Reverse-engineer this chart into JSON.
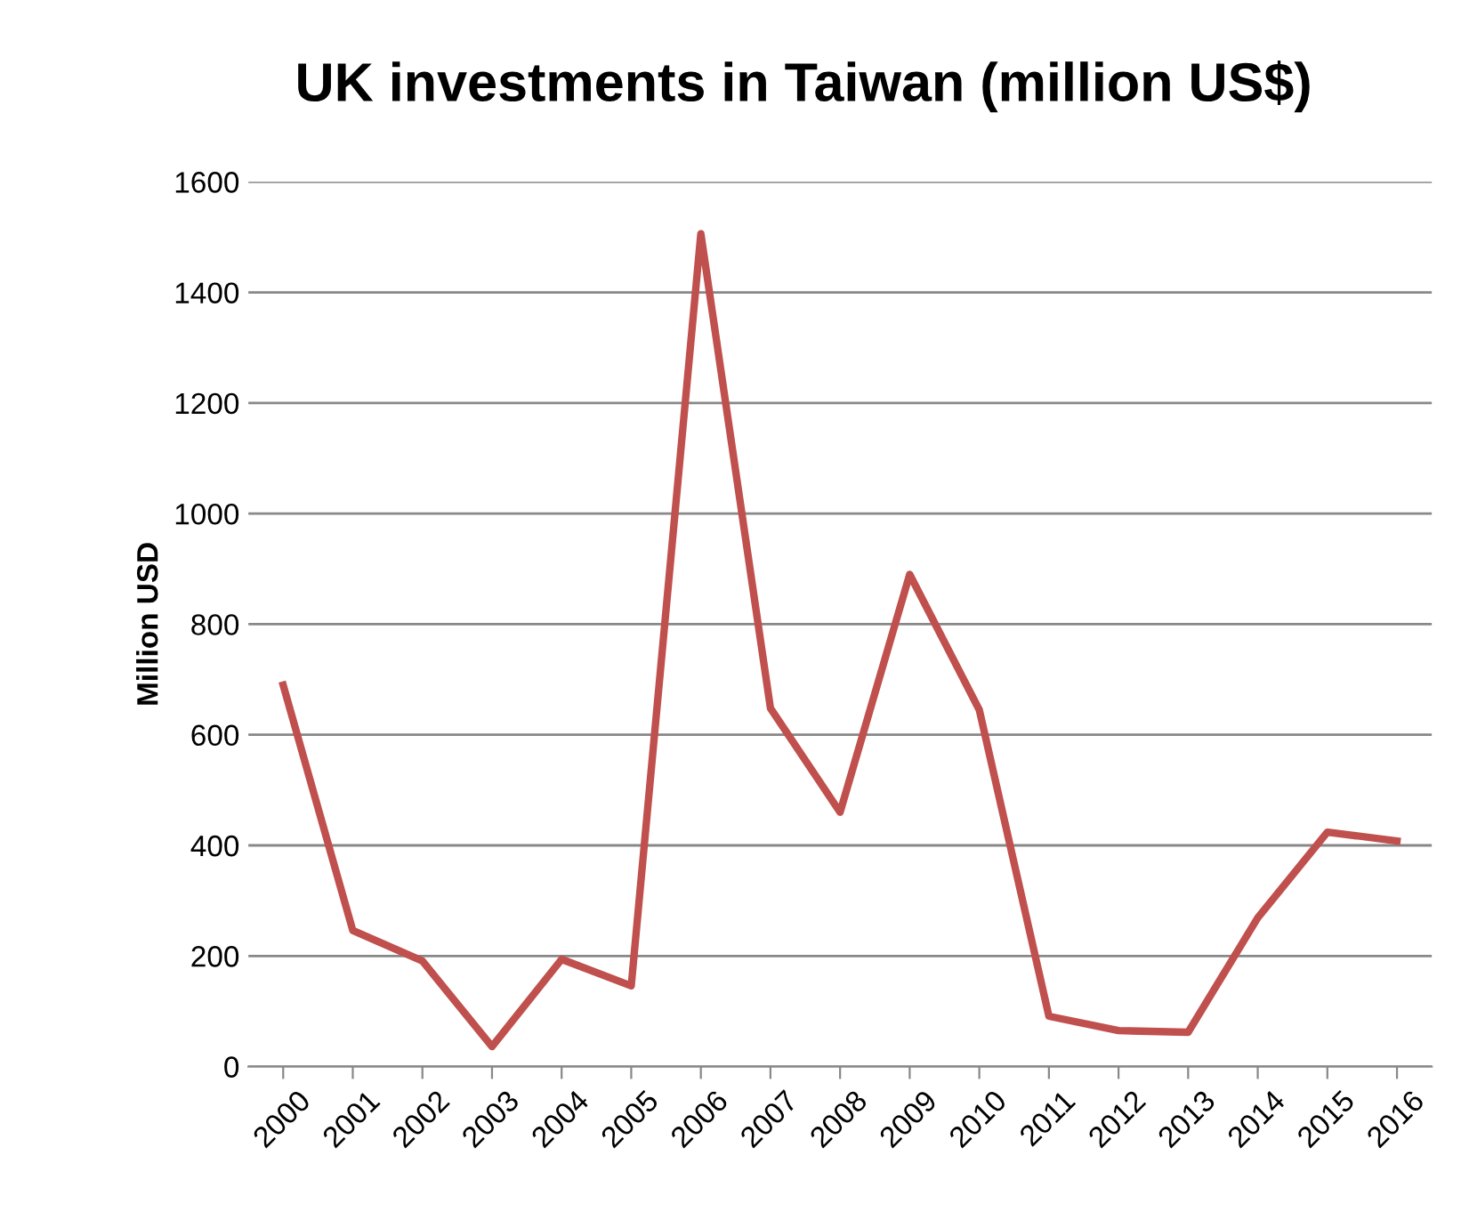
{
  "chart_data": {
    "type": "line",
    "title": "UK investments in Taiwan (million US$)",
    "ylabel": "Million USD",
    "categories": [
      "2000",
      "2001",
      "2002",
      "2003",
      "2004",
      "2005",
      "2006",
      "2007",
      "2008",
      "2009",
      "2010",
      "2011",
      "2012",
      "2013",
      "2014",
      "2015",
      "2016"
    ],
    "series": [
      {
        "color": "#c0504d",
        "values": [
          690,
          246,
          191,
          36,
          194,
          146,
          1506,
          648,
          460,
          890,
          645,
          91,
          65,
          62,
          269,
          424,
          408
        ]
      }
    ],
    "ylim": [
      0,
      1600
    ],
    "yticks": [
      0,
      200,
      400,
      600,
      800,
      1000,
      1200,
      1400,
      1600
    ],
    "grid": "y",
    "legend": false,
    "marker": "none",
    "line_style": "solid"
  }
}
